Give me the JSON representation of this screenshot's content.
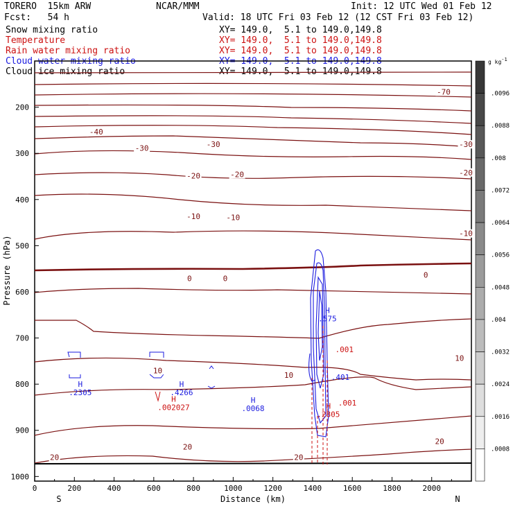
{
  "header": {
    "model": "TORERO  15km ARW",
    "org": "NCAR/MMM",
    "init": "Init: 12 UTC Wed 01 Feb 12",
    "fcst": "Fcst:   54 h",
    "valid": "Valid: 18 UTC Fri 03 Feb 12 (12 CST Fri 03 Feb 12)"
  },
  "fields": [
    {
      "name": "Snow mixing ratio",
      "color": "#000000",
      "xy": ""
    },
    {
      "name": "Temperature",
      "color": "#cc1111",
      "xy": "XY= 149.0,  5.1 to 149.0,149.8"
    },
    {
      "name": "Rain water mixing ratio",
      "color": "#cc1111",
      "xy": "XY= 149.0,  5.1 to 149.0,149.8"
    },
    {
      "name": "Cloud water mixing ratio",
      "color": "#1a1adf",
      "xy": "XY= 149.0,  5.1 to 149.0,149.8"
    },
    {
      "name": "Cloud ice mixing ratio",
      "color": "#000000",
      "xy": "XY= 149.0,  5.1 to 149.0,149.8"
    }
  ],
  "top_xy": "XY= 149.0,  5.1 to 149.0,149.8",
  "chart_data": {
    "type": "contour-cross-section",
    "xlabel": "Distance (km)",
    "ylabel": "Pressure (hPa)",
    "xlim": [
      0,
      2200
    ],
    "ylim": [
      1010,
      100
    ],
    "x_ticks": [
      0,
      200,
      400,
      600,
      800,
      1000,
      1200,
      1400,
      1600,
      1800,
      2000
    ],
    "y_ticks": [
      200,
      300,
      400,
      500,
      600,
      700,
      800,
      900,
      1000
    ],
    "x_end_labels": {
      "left": "S",
      "right": "N"
    },
    "temperature_contour_labels": [
      {
        "value": "-70",
        "x": 2060,
        "p": 168
      },
      {
        "value": "-40",
        "x": 310,
        "p": 255
      },
      {
        "value": "-30",
        "x": 540,
        "p": 290
      },
      {
        "value": "-30",
        "x": 900,
        "p": 282
      },
      {
        "value": "-30",
        "x": 2240,
        "p": 282
      },
      {
        "value": "-20",
        "x": 800,
        "p": 350
      },
      {
        "value": "-20",
        "x": 1020,
        "p": 347
      },
      {
        "value": "-20",
        "x": 2180,
        "p": 343
      },
      {
        "value": "-10",
        "x": 800,
        "p": 438
      },
      {
        "value": "-10",
        "x": 1000,
        "p": 440
      },
      {
        "value": "-10",
        "x": 2240,
        "p": 475
      },
      {
        "value": "0",
        "x": 780,
        "p": 572
      },
      {
        "value": "0",
        "x": 960,
        "p": 572
      },
      {
        "value": "0",
        "x": 1970,
        "p": 565
      },
      {
        "value": "10",
        "x": 620,
        "p": 772
      },
      {
        "value": "10",
        "x": 1280,
        "p": 782
      },
      {
        "value": "10",
        "x": 2140,
        "p": 745
      },
      {
        "value": "20",
        "x": 100,
        "p": 960
      },
      {
        "value": "20",
        "x": 770,
        "p": 937
      },
      {
        "value": "20",
        "x": 1330,
        "p": 960
      },
      {
        "value": "20",
        "x": 2040,
        "p": 925
      }
    ],
    "maxima_markers": [
      {
        "label": "H",
        "value": ".2305",
        "color": "#1a1adf",
        "x": 230,
        "p": 818
      },
      {
        "label": "H",
        "value": ".4266",
        "color": "#1a1adf",
        "x": 740,
        "p": 818
      },
      {
        "label": "H",
        "value": ".002027",
        "color": "#cc1111",
        "x": 700,
        "p": 850
      },
      {
        "label": "H",
        "value": ".0068",
        "color": "#1a1adf",
        "x": 1100,
        "p": 852
      },
      {
        "label": "H",
        "value": ".575",
        "color": "#1a1adf",
        "x": 1475,
        "p": 658
      },
      {
        "label": "",
        "value": ".001",
        "color": "#cc1111",
        "x": 1560,
        "p": 725
      },
      {
        "label": "",
        "value": ".401",
        "color": "#1a1adf",
        "x": 1540,
        "p": 785
      },
      {
        "label": "",
        "value": ".001",
        "color": "#cc1111",
        "x": 1575,
        "p": 840
      },
      {
        "label": "H",
        "value": ".2805",
        "color": "#cc1111",
        "x": 1480,
        "p": 865
      }
    ],
    "colorbar": {
      "unit": "g kg",
      "unit_exp": "-1",
      "ticks": [
        ".0096",
        ".0088",
        ".008",
        ".0072",
        ".0064",
        ".0056",
        ".0048",
        ".004",
        ".0032",
        ".0024",
        ".0016",
        ".0008"
      ]
    }
  }
}
